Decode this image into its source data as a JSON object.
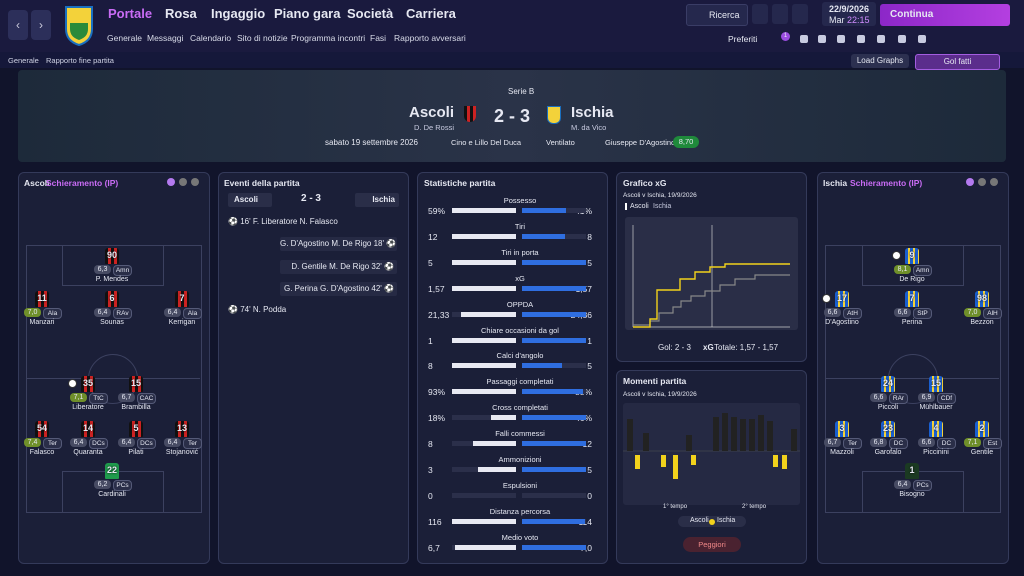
{
  "nav": {
    "tabs": [
      "Portale",
      "Rosa",
      "Ingaggio",
      "Piano gara",
      "Società",
      "Carriera"
    ],
    "subtabs": [
      "Generale",
      "Messaggi",
      "Calendario",
      "Sito di notizie",
      "Programma incontri",
      "Fasi",
      "Rapporto avversari"
    ],
    "search": "Ricerca",
    "date": "22/9/2026",
    "weekday": "Mar",
    "time": "22:15",
    "continue": "Continua",
    "favorites": "Preferiti",
    "badge": "1"
  },
  "breadcrumb": [
    "Generale",
    "Rapporto fine partita"
  ],
  "actions": {
    "load_graphs": "Load Graphs",
    "goals": "Gol fatti"
  },
  "match": {
    "competition": "Serie B",
    "home": "Ascoli",
    "home_manager": "D. De Rossi",
    "score": "2 - 3",
    "away": "Ischia",
    "away_manager": "M. da Vico",
    "date": "sabato 19 settembre 2026",
    "stadium": "Cino e Lillo Del Duca",
    "weather": "Ventilato",
    "referee": "Giuseppe D'Agostino",
    "referee_rating": "8,70"
  },
  "lineups": [
    {
      "team": "Ascoli",
      "title": "Schieramento (IP)",
      "players": [
        {
          "number": "90",
          "rating": "6,3",
          "position": "Amn",
          "name": "P. Mendes"
        },
        {
          "number": "11",
          "rating": "7,0",
          "position": "Ala",
          "name": "Manzari"
        },
        {
          "number": "6",
          "rating": "6,4",
          "position": "RAv",
          "name": "Sounas"
        },
        {
          "number": "7",
          "rating": "6,4",
          "position": "Ala",
          "name": "Kerrigan"
        },
        {
          "number": "35",
          "rating": "7,1",
          "position": "TtC",
          "name": "Liberatore"
        },
        {
          "number": "15",
          "rating": "6,7",
          "position": "CAC",
          "name": "Brambilla"
        },
        {
          "number": "54",
          "rating": "7,4",
          "position": "Ter",
          "name": "Falasco"
        },
        {
          "number": "14",
          "rating": "6,4",
          "position": "DCs",
          "name": "Quaranta"
        },
        {
          "number": "5",
          "rating": "6,4",
          "position": "DCs",
          "name": "Pilati"
        },
        {
          "number": "13",
          "rating": "6,4",
          "position": "Ter",
          "name": "Stojanović"
        },
        {
          "number": "22",
          "rating": "6,2",
          "position": "PCs",
          "name": "Cardinali"
        }
      ]
    },
    {
      "team": "Ischia",
      "title": "Schieramento (IP)",
      "players": [
        {
          "number": "9",
          "rating": "8,1",
          "position": "Amn",
          "name": "De Rigo"
        },
        {
          "number": "17",
          "rating": "6,6",
          "position": "AtH",
          "name": "D'Agostino"
        },
        {
          "number": "7",
          "rating": "6,6",
          "position": "StP",
          "name": "Perina"
        },
        {
          "number": "98",
          "rating": "7,0",
          "position": "AlH",
          "name": "Bezzon"
        },
        {
          "number": "24",
          "rating": "6,6",
          "position": "RAr",
          "name": "Piccoli"
        },
        {
          "number": "15",
          "rating": "6,9",
          "position": "CDf",
          "name": "Mühlbauer"
        },
        {
          "number": "3",
          "rating": "6,7",
          "position": "Ter",
          "name": "Mazzoli"
        },
        {
          "number": "23",
          "rating": "6,8",
          "position": "DC",
          "name": "Garofalo"
        },
        {
          "number": "4",
          "rating": "6,6",
          "position": "DC",
          "name": "Piccinini"
        },
        {
          "number": "2",
          "rating": "7,1",
          "position": "Est",
          "name": "Gentile"
        },
        {
          "number": "1",
          "rating": "6,4",
          "position": "PCs",
          "name": "Bisogno"
        }
      ]
    }
  ],
  "events": {
    "title": "Eventi della partita",
    "home": "Ascoli",
    "score": "2 - 3",
    "away": "Ischia",
    "items": [
      {
        "side": "home",
        "minute": "16'",
        "scorer": "F. Liberatore",
        "assist": "N. Falasco"
      },
      {
        "side": "away",
        "minute": "18'",
        "scorer": "G. D'Agostino",
        "assist": "M. De Rigo"
      },
      {
        "side": "away",
        "minute": "32'",
        "scorer": "D. Gentile",
        "assist": "M. De Rigo"
      },
      {
        "side": "away",
        "minute": "42'",
        "scorer": "G. Perina",
        "assist": "G. D'Agostino"
      },
      {
        "side": "home",
        "minute": "74'",
        "scorer": "N. Podda"
      }
    ]
  },
  "stats": {
    "title": "Statistiche partita",
    "rows": [
      {
        "label": "Possesso",
        "home": 59,
        "away": 41,
        "home_label": "59%",
        "away_label": "41%"
      },
      {
        "label": "Tiri",
        "home": 12,
        "away": 8
      },
      {
        "label": "Tiri in porta",
        "home": 5,
        "away": 5
      },
      {
        "label": "xG",
        "home": 1.57,
        "away": 1.57,
        "home_label": "1,57",
        "away_label": "1,57"
      },
      {
        "label": "OPPDA",
        "home": 21.33,
        "away": 24.86,
        "home_label": "21,33",
        "away_label": "24,86"
      },
      {
        "label": "Chiare occasioni da gol",
        "home": 1,
        "away": 1
      },
      {
        "label": "Calci d'angolo",
        "home": 8,
        "away": 5
      },
      {
        "label": "Passaggi completati",
        "home": 93,
        "away": 88,
        "home_label": "93%",
        "away_label": "88%"
      },
      {
        "label": "Cross completati",
        "home": 18,
        "away": 46,
        "home_label": "18%",
        "away_label": "46%"
      },
      {
        "label": "Falli commessi",
        "home": 8,
        "away": 12
      },
      {
        "label": "Ammonizioni",
        "home": 3,
        "away": 5
      },
      {
        "label": "Espulsioni",
        "home": 0,
        "away": 0
      },
      {
        "label": "Distanza percorsa",
        "home": 116,
        "away": 114
      },
      {
        "label": "Medio voto",
        "home": 6.7,
        "away": 7.0,
        "home_label": "6,7",
        "away_label": "7,0"
      }
    ]
  },
  "xg": {
    "title": "Grafico xG",
    "subtitle": "Ascoli v Ischia, 19/9/2026",
    "tabs": [
      "Ascoli",
      "Ischia"
    ],
    "goals": "Gol: 2 - 3",
    "xg_label": "xG",
    "total": "Totale: 1,57 - 1,57"
  },
  "moments": {
    "title": "Momenti partita",
    "subtitle": "Ascoli v Ischia, 19/9/2026",
    "halves": [
      "1° tempo",
      "2° tempo"
    ],
    "legend": [
      "Ascoli",
      "Ischia"
    ],
    "button": "Peggiori"
  }
}
